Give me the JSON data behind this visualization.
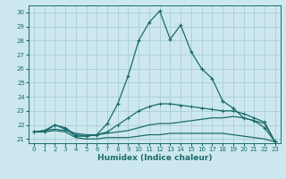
{
  "xlabel": "Humidex (Indice chaleur)",
  "bg_color": "#cce8ee",
  "grid_color": "#aacdd6",
  "line_color": "#1a6b6b",
  "xlim": [
    -0.5,
    23.5
  ],
  "ylim": [
    20.7,
    30.5
  ],
  "xticks": [
    0,
    1,
    2,
    3,
    4,
    5,
    6,
    7,
    8,
    9,
    10,
    11,
    12,
    13,
    14,
    15,
    16,
    17,
    18,
    19,
    20,
    21,
    22,
    23
  ],
  "yticks": [
    21,
    22,
    23,
    24,
    25,
    26,
    27,
    28,
    29,
    30
  ],
  "s1_x": [
    0,
    1,
    2,
    3,
    4,
    5,
    6,
    7,
    8,
    9,
    10,
    11,
    12,
    13,
    14,
    15,
    16,
    17,
    18,
    19,
    20,
    21,
    22,
    23
  ],
  "s1_y": [
    21.5,
    21.5,
    22.0,
    21.7,
    21.2,
    21.2,
    21.3,
    22.1,
    23.5,
    25.5,
    28.0,
    29.3,
    30.1,
    28.1,
    29.1,
    27.2,
    26.0,
    25.3,
    23.7,
    23.2,
    22.5,
    22.3,
    21.8,
    20.8
  ],
  "s2_x": [
    0,
    1,
    2,
    3,
    4,
    5,
    6,
    7,
    8,
    9,
    10,
    11,
    12,
    13,
    14,
    15,
    16,
    17,
    18,
    19,
    20,
    21,
    22,
    23
  ],
  "s2_y": [
    21.5,
    21.6,
    21.7,
    21.6,
    21.4,
    21.3,
    21.3,
    21.4,
    21.5,
    21.6,
    21.8,
    22.0,
    22.1,
    22.1,
    22.2,
    22.3,
    22.4,
    22.5,
    22.5,
    22.6,
    22.5,
    22.3,
    22.1,
    20.8
  ],
  "s3_x": [
    0,
    1,
    2,
    3,
    4,
    5,
    6,
    7,
    8,
    9,
    10,
    11,
    12,
    13,
    14,
    15,
    16,
    17,
    18,
    19,
    20,
    21,
    22,
    23
  ],
  "s3_y": [
    21.5,
    21.5,
    21.6,
    21.5,
    21.1,
    21.0,
    21.0,
    21.1,
    21.1,
    21.1,
    21.2,
    21.3,
    21.3,
    21.4,
    21.4,
    21.4,
    21.4,
    21.4,
    21.4,
    21.3,
    21.2,
    21.1,
    21.0,
    20.8
  ],
  "s4_x": [
    0,
    1,
    2,
    3,
    4,
    5,
    6,
    7,
    8,
    9,
    10,
    11,
    12,
    13,
    14,
    15,
    16,
    17,
    18,
    19,
    20,
    21,
    22,
    23
  ],
  "s4_y": [
    21.5,
    21.6,
    22.0,
    21.8,
    21.3,
    21.2,
    21.3,
    21.5,
    22.0,
    22.5,
    23.0,
    23.3,
    23.5,
    23.5,
    23.4,
    23.3,
    23.2,
    23.1,
    23.0,
    23.0,
    22.8,
    22.5,
    22.2,
    20.8
  ]
}
